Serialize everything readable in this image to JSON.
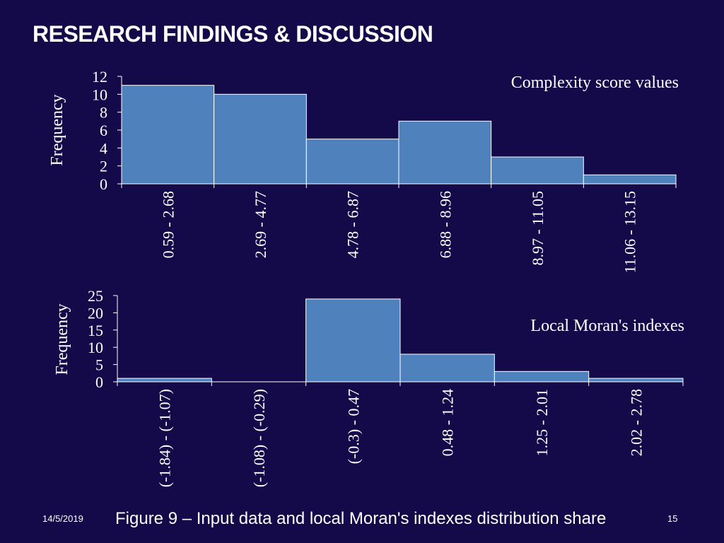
{
  "slide": {
    "title": "RESEARCH FINDINGS & DISCUSSION",
    "date": "14/5/2019",
    "caption": "Figure 9 – Input data and local Moran's indexes distribution share",
    "page_number": "15"
  },
  "colors": {
    "background": "#140a4a",
    "bar_fill": "#4f81bd",
    "bar_stroke": "#ffffff",
    "text": "#ffffff"
  },
  "chart_data": [
    {
      "type": "bar",
      "title": "Complexity score values",
      "ylabel": "Frequency",
      "xlabel": "",
      "categories": [
        "0.59 - 2.68",
        "2.69 - 4.77",
        "4.78 - 6.87",
        "6.88 - 8.96",
        "8.97 - 11.05",
        "11.06 - 13.15"
      ],
      "values": [
        11,
        10,
        5,
        7,
        3,
        1
      ],
      "ylim": [
        0,
        12
      ],
      "yticks": [
        "0",
        "2",
        "4",
        "6",
        "8",
        "10",
        "12"
      ],
      "grid": false,
      "legend": "none"
    },
    {
      "type": "bar",
      "title": "Local Moran's indexes",
      "ylabel": "Frequency",
      "xlabel": "",
      "categories": [
        "(-1.84) - (-1.07)",
        "(-1.08) - (-0.29)",
        "(-0.3) - 0.47",
        "0.48 - 1.24",
        "1.25 - 2.01",
        "2.02 - 2.78"
      ],
      "values": [
        1,
        0,
        24,
        8,
        3,
        1
      ],
      "ylim": [
        0,
        25
      ],
      "yticks": [
        "0",
        "5",
        "10",
        "15",
        "20",
        "25"
      ],
      "grid": false,
      "legend": "none"
    }
  ]
}
